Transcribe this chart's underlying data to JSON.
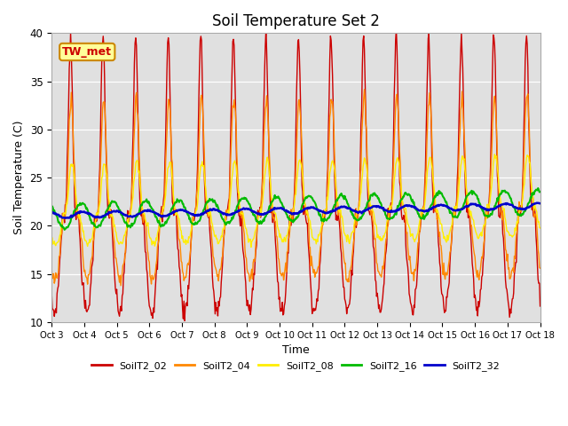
{
  "title": "Soil Temperature Set 2",
  "xlabel": "Time",
  "ylabel": "Soil Temperature (C)",
  "ylim": [
    10,
    40
  ],
  "series_names": [
    "SoilT2_02",
    "SoilT2_04",
    "SoilT2_08",
    "SoilT2_16",
    "SoilT2_32"
  ],
  "series_colors": [
    "#cc0000",
    "#ff8800",
    "#ffee00",
    "#00bb00",
    "#0000cc"
  ],
  "series_linewidths": [
    1.0,
    1.0,
    1.0,
    1.5,
    1.8
  ],
  "bg_color": "#e0e0e0",
  "fig_color": "#ffffff",
  "tw_met_label": "TW_met",
  "tw_met_bg": "#ffff99",
  "tw_met_border": "#cc8800",
  "n_days": 15,
  "hours_per_day": 48,
  "tick_labels": [
    "Oct 3",
    "Oct 4",
    "Oct 5",
    "Oct 6",
    "Oct 7",
    "Oct 8",
    "Oct 9",
    "Oct 10",
    "Oct 11",
    "Oct 12",
    "Oct 13",
    "Oct 14",
    "Oct 15",
    "Oct 16",
    "Oct 17",
    "Oct 18"
  ],
  "legend_names": [
    "SoilT2_02",
    "SoilT2_04",
    "SoilT2_08",
    "SoilT2_16",
    "SoilT2_32"
  ]
}
